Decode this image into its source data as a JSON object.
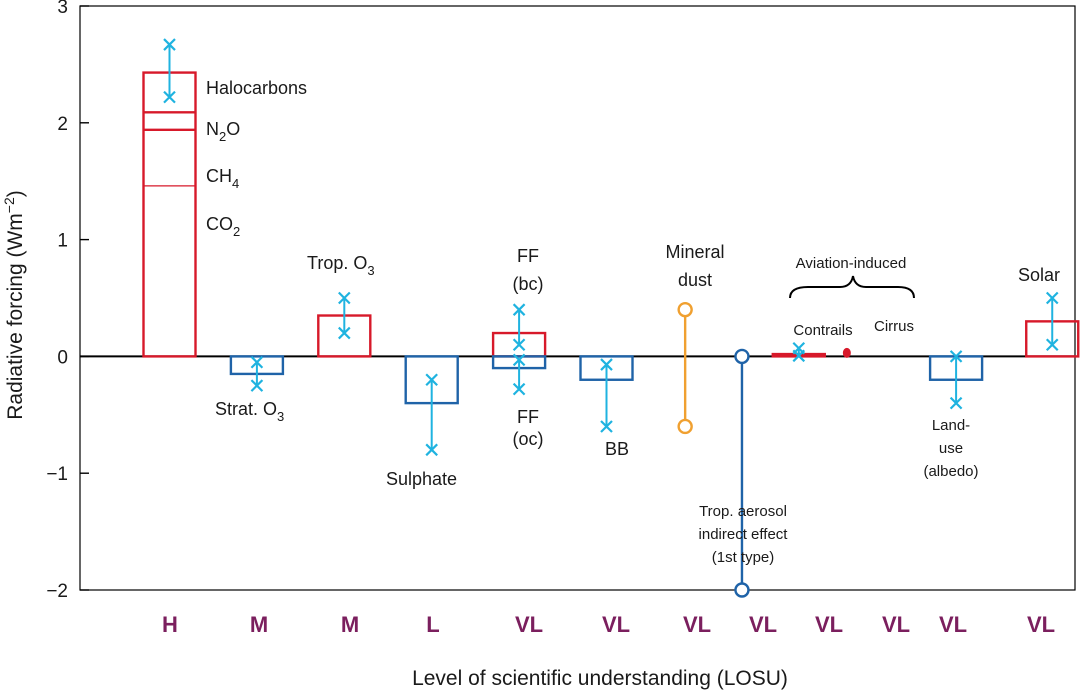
{
  "chart_data": {
    "type": "bar",
    "title": "",
    "ylabel": "Radiative forcing",
    "ylabel_unit": "(Wm",
    "ylabel_unit_sup": "−2",
    "ylabel_unit_close": ")",
    "xlabel": "Level  of scientific understanding (LOSU)",
    "ylim": [
      -2,
      3
    ],
    "yticks": [
      {
        "v": 3,
        "label": "3"
      },
      {
        "v": 2,
        "label": "2"
      },
      {
        "v": 1,
        "label": "1"
      },
      {
        "v": 0,
        "label": "0"
      },
      {
        "v": -1,
        "label": "−1"
      },
      {
        "v": -2,
        "label": "−2"
      }
    ],
    "colors": {
      "positive": "#d7192a",
      "negative": "#1f63a8",
      "error": "#1fb3e0",
      "dust": "#f0a030",
      "losu": "#7b1f5e",
      "axis": "#000000"
    },
    "stacked_ghg": {
      "position": 1,
      "segments": [
        {
          "name": "CO2",
          "label": "CO",
          "sub": "2",
          "from": 0,
          "to": 1.46
        },
        {
          "name": "CH4",
          "label": "CH",
          "sub": "4",
          "from": 1.46,
          "to": 1.94
        },
        {
          "name": "N2O",
          "label": "N",
          "sub": "2",
          "tail": "O",
          "from": 1.94,
          "to": 2.09
        },
        {
          "name": "Halocarbons",
          "label": "Halocarbons",
          "sub": "",
          "from": 2.09,
          "to": 2.43
        }
      ],
      "err_low": 2.22,
      "err_high": 2.67
    },
    "bars": [
      {
        "name": "strat-o3",
        "pos": 2,
        "value": -0.15,
        "err_low": -0.25,
        "err_high": -0.05
      },
      {
        "name": "trop-o3",
        "pos": 3,
        "value": 0.35,
        "err_low": 0.2,
        "err_high": 0.5
      },
      {
        "name": "sulphate",
        "pos": 4,
        "value": -0.4,
        "err_low": -0.8,
        "err_high": -0.2
      },
      {
        "name": "ff-bc",
        "pos": 5,
        "value": 0.2,
        "err_low": 0.1,
        "err_high": 0.4
      },
      {
        "name": "ff-oc",
        "pos": 5,
        "value": -0.1,
        "err_low": -0.28,
        "err_high": -0.03
      },
      {
        "name": "bb",
        "pos": 6,
        "value": -0.2,
        "err_low": -0.6,
        "err_high": -0.07
      },
      {
        "name": "contrails",
        "pos": 8.2,
        "value": 0.02,
        "err_low": 0.005,
        "err_high": 0.07
      },
      {
        "name": "land-use",
        "pos": 10,
        "value": -0.2,
        "err_low": -0.4,
        "err_high": 0.0
      },
      {
        "name": "solar",
        "pos": 11.1,
        "value": 0.3,
        "err_low": 0.1,
        "err_high": 0.5
      }
    ],
    "ranges": [
      {
        "name": "mineral-dust",
        "pos": 6.9,
        "low": -0.6,
        "high": 0.4,
        "color": "dust"
      },
      {
        "name": "trop-aerosol-indirect",
        "pos": 7.55,
        "low": -2.0,
        "high": 0.0,
        "color": "negative"
      }
    ],
    "points": [
      {
        "name": "cirrus",
        "pos": 8.75,
        "value": 0.03
      }
    ],
    "labels": {
      "halocarbons": "Halocarbons",
      "n2o": "N",
      "n2o_sub": "2",
      "n2o_tail": "O",
      "ch4": "CH",
      "ch4_sub": "4",
      "co2": "CO",
      "co2_sub": "2",
      "trop_o3": "Trop. O",
      "trop_o3_sub": "3",
      "strat_o3": "Strat. O",
      "strat_o3_sub": "3",
      "sulphate": "Sulphate",
      "ff_bc_1": "FF",
      "ff_bc_2": "(bc)",
      "ff_oc_1": "FF",
      "ff_oc_2": "(oc)",
      "bb": "BB",
      "mineral_dust_1": "Mineral",
      "mineral_dust_2": "dust",
      "aviation": "Aviation-induced",
      "contrails": "Contrails",
      "cirrus": "Cirrus",
      "trop_aerosol_1": "Trop. aerosol",
      "trop_aerosol_2": "indirect effect",
      "trop_aerosol_3": "(1st type)",
      "land_use_1": "Land-",
      "land_use_2": "use",
      "land_use_3": "(albedo)",
      "solar": "Solar"
    },
    "losu": [
      "H",
      "M",
      "M",
      "L",
      "VL",
      "VL",
      "VL",
      "VL",
      "VL",
      "VL",
      "VL",
      "VL"
    ]
  }
}
